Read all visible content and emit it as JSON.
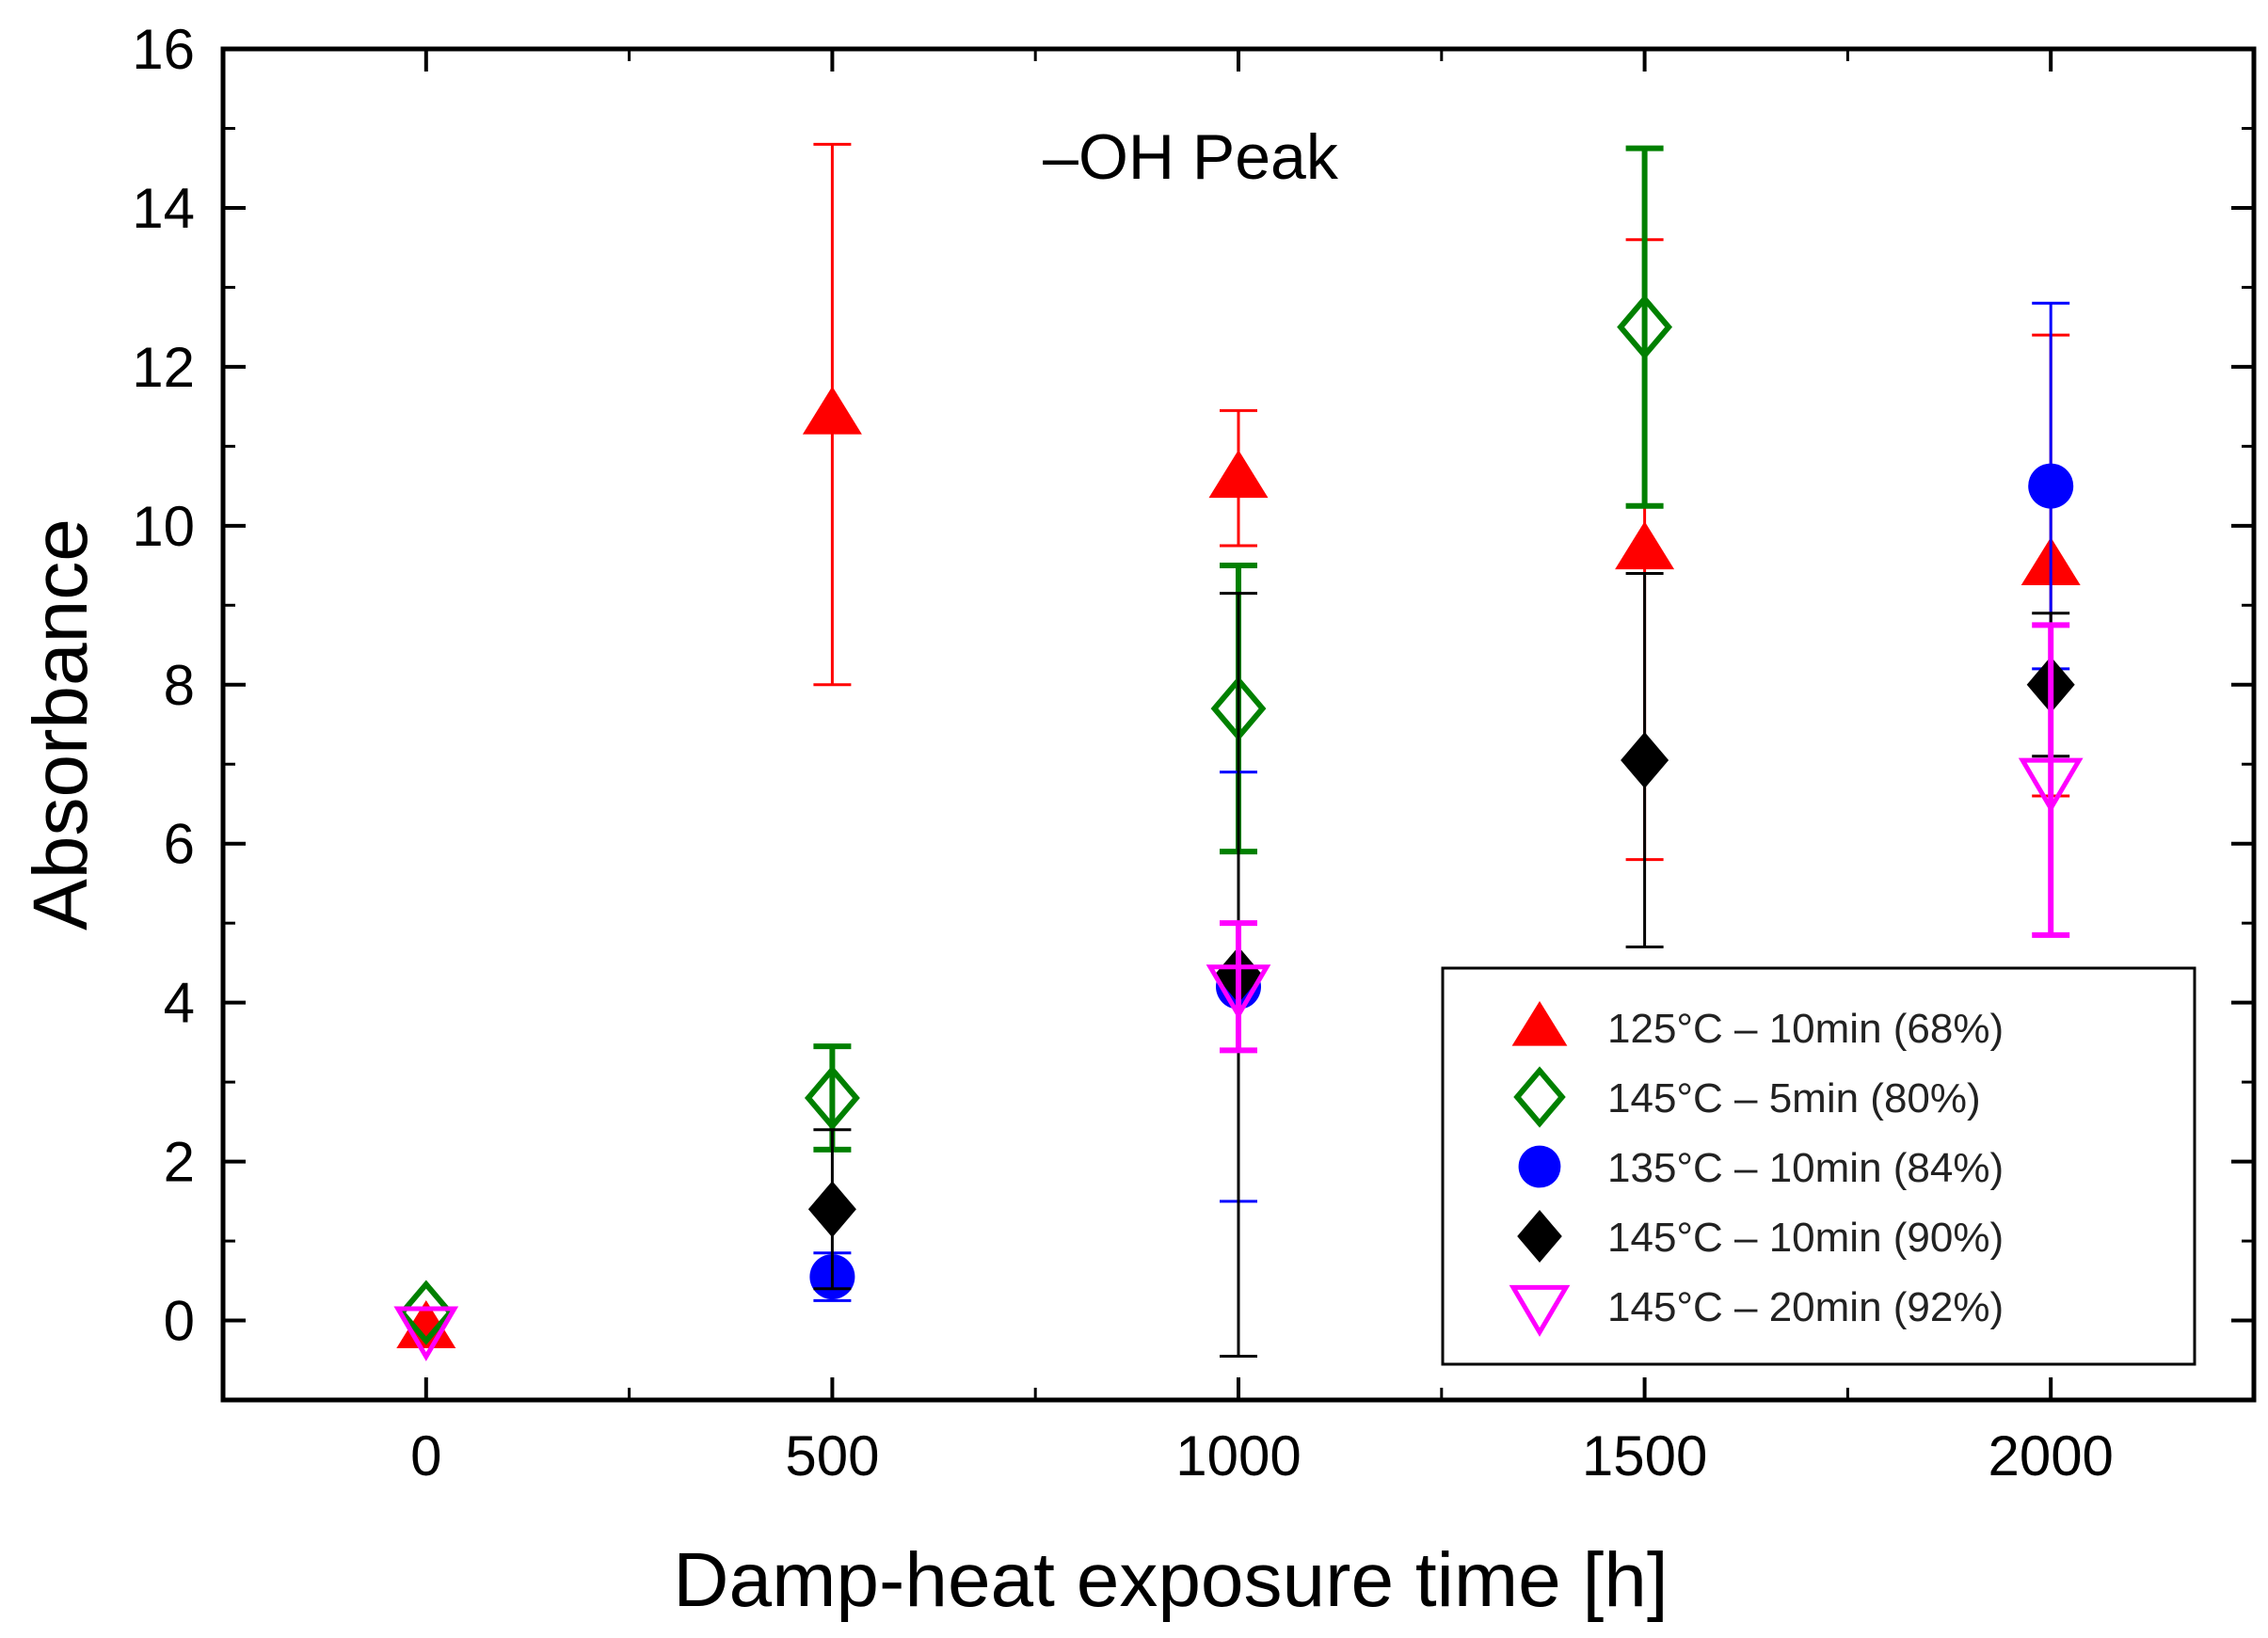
{
  "chart_data": {
    "type": "scatter",
    "title": "",
    "annotation": "–OH Peak",
    "xlabel": "Damp-heat exposure time [h]",
    "ylabel": "Absorbance",
    "xlim": [
      -250,
      2250
    ],
    "ylim": [
      -1,
      16
    ],
    "xticks": [
      0,
      500,
      1000,
      1500,
      2000
    ],
    "xtick_labels": [
      "0",
      "500",
      "1000",
      "1500",
      "2000"
    ],
    "xminor": [
      250,
      750,
      1250,
      1750
    ],
    "yticks": [
      0,
      2,
      4,
      6,
      8,
      10,
      12,
      14,
      16
    ],
    "ytick_labels": [
      "0",
      "2",
      "4",
      "6",
      "8",
      "10",
      "12",
      "14",
      "16"
    ],
    "grid": false,
    "legend_position": "bottom-right",
    "series": [
      {
        "name": "125°C – 10min (68%)",
        "color": "#ff0000",
        "marker": "triangle-up-filled",
        "x": [
          0,
          500,
          1000,
          1500,
          2000
        ],
        "y": [
          -0.1,
          11.4,
          10.6,
          9.7,
          9.5
        ],
        "err": [
          0.0,
          3.4,
          0.85,
          3.9,
          2.9
        ]
      },
      {
        "name": "145°C – 5min (80%)",
        "color": "#008000",
        "marker": "diamond-open",
        "x": [
          0,
          500,
          1000,
          1500,
          2000
        ],
        "y": [
          0.1,
          2.8,
          7.7,
          12.5,
          null
        ],
        "err": [
          0.0,
          0.65,
          1.8,
          2.25,
          null
        ]
      },
      {
        "name": "135°C – 10min (84%)",
        "color": "#0000ff",
        "marker": "circle-filled",
        "x": [
          0,
          500,
          1000,
          1500,
          2000
        ],
        "y": [
          null,
          0.55,
          4.2,
          null,
          10.5
        ],
        "err": [
          null,
          0.3,
          2.7,
          null,
          2.3
        ]
      },
      {
        "name": "145°C – 10min (90%)",
        "color": "#000000",
        "marker": "diamond-filled",
        "x": [
          0,
          500,
          1000,
          1500,
          2000
        ],
        "y": [
          null,
          1.4,
          4.35,
          7.05,
          8.0
        ],
        "err": [
          null,
          1.0,
          4.8,
          2.35,
          0.9
        ]
      },
      {
        "name": "145°C – 20min (92%)",
        "color": "#ff00ff",
        "marker": "triangle-down-open",
        "x": [
          0,
          500,
          1000,
          1500,
          2000
        ],
        "y": [
          -0.1,
          null,
          4.2,
          null,
          6.8
        ],
        "err": [
          0.0,
          null,
          0.8,
          null,
          1.95
        ]
      }
    ]
  }
}
